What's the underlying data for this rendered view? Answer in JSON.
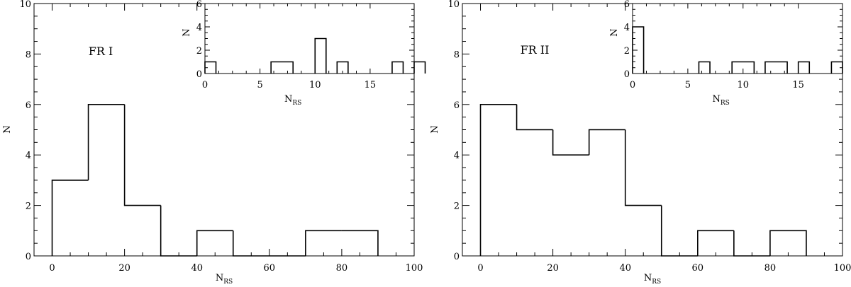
{
  "chart_data": [
    {
      "type": "histogram",
      "panel_label": "FR I",
      "xlabel": "N",
      "xlabel_sub": "RS",
      "ylabel": "N",
      "xlim": [
        -5,
        100
      ],
      "ylim": [
        0,
        10
      ],
      "xticks": [
        0,
        20,
        40,
        60,
        80,
        100
      ],
      "yticks": [
        0,
        2,
        4,
        6,
        8,
        10
      ],
      "bins": [
        {
          "x0": 0,
          "x1": 10,
          "count": 3
        },
        {
          "x0": 10,
          "x1": 20,
          "count": 6
        },
        {
          "x0": 20,
          "x1": 30,
          "count": 2
        },
        {
          "x0": 30,
          "x1": 40,
          "count": 0
        },
        {
          "x0": 40,
          "x1": 50,
          "count": 1
        },
        {
          "x0": 50,
          "x1": 60,
          "count": 0
        },
        {
          "x0": 60,
          "x1": 70,
          "count": 0
        },
        {
          "x0": 70,
          "x1": 80,
          "count": 1
        },
        {
          "x0": 80,
          "x1": 90,
          "count": 1
        }
      ],
      "inset": {
        "xlabel": "N",
        "xlabel_sub": "RS",
        "ylabel": "N",
        "xlim": [
          0,
          19
        ],
        "ylim": [
          0,
          6
        ],
        "xticks": [
          0,
          5,
          10,
          15
        ],
        "yticks": [
          0,
          2,
          4,
          6
        ],
        "bins": [
          {
            "x0": 0,
            "x1": 1,
            "count": 1
          },
          {
            "x0": 6,
            "x1": 8,
            "count": 1
          },
          {
            "x0": 10,
            "x1": 11,
            "count": 3
          },
          {
            "x0": 12,
            "x1": 13,
            "count": 1
          },
          {
            "x0": 17,
            "x1": 18,
            "count": 1
          },
          {
            "x0": 19,
            "x1": 20,
            "count": 1
          }
        ]
      }
    },
    {
      "type": "histogram",
      "panel_label": "FR II",
      "xlabel": "N",
      "xlabel_sub": "RS",
      "ylabel": "N",
      "xlim": [
        -5,
        100
      ],
      "ylim": [
        0,
        10
      ],
      "xticks": [
        0,
        20,
        40,
        60,
        80,
        100
      ],
      "yticks": [
        0,
        2,
        4,
        6,
        8,
        10
      ],
      "bins": [
        {
          "x0": 0,
          "x1": 10,
          "count": 6
        },
        {
          "x0": 10,
          "x1": 20,
          "count": 5
        },
        {
          "x0": 20,
          "x1": 30,
          "count": 4
        },
        {
          "x0": 30,
          "x1": 40,
          "count": 5
        },
        {
          "x0": 40,
          "x1": 50,
          "count": 2
        },
        {
          "x0": 50,
          "x1": 60,
          "count": 0
        },
        {
          "x0": 60,
          "x1": 70,
          "count": 1
        },
        {
          "x0": 70,
          "x1": 80,
          "count": 0
        },
        {
          "x0": 80,
          "x1": 90,
          "count": 1
        }
      ],
      "inset": {
        "xlabel": "N",
        "xlabel_sub": "RS",
        "ylabel": "N",
        "xlim": [
          0,
          19
        ],
        "ylim": [
          0,
          6
        ],
        "xticks": [
          0,
          5,
          10,
          15
        ],
        "yticks": [
          0,
          2,
          4,
          6
        ],
        "bins": [
          {
            "x0": 0,
            "x1": 1,
            "count": 4
          },
          {
            "x0": 6,
            "x1": 7,
            "count": 1
          },
          {
            "x0": 9,
            "x1": 11,
            "count": 1
          },
          {
            "x0": 12,
            "x1": 14,
            "count": 1
          },
          {
            "x0": 15,
            "x1": 16,
            "count": 1
          },
          {
            "x0": 18,
            "x1": 19,
            "count": 1
          }
        ]
      }
    }
  ]
}
